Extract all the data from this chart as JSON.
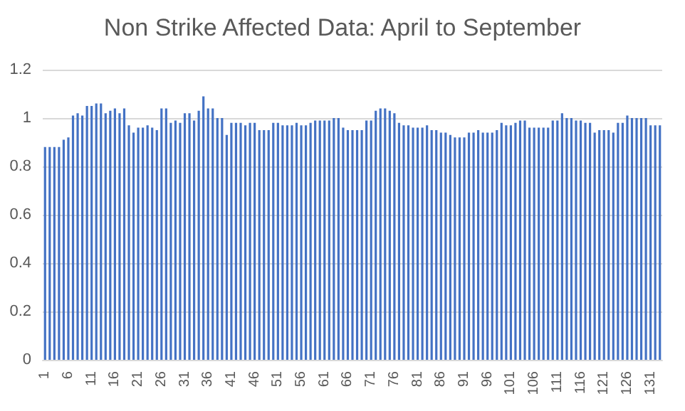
{
  "chart_data": {
    "type": "bar",
    "title": "Non Strike Affected Data: April to September",
    "categories": [
      "1",
      null,
      null,
      null,
      null,
      "6",
      null,
      null,
      null,
      null,
      "11",
      null,
      null,
      null,
      null,
      "16",
      null,
      null,
      null,
      null,
      "21",
      null,
      null,
      null,
      null,
      "26",
      null,
      null,
      null,
      null,
      "31",
      null,
      null,
      null,
      null,
      "36",
      null,
      null,
      null,
      null,
      "41",
      null,
      null,
      null,
      null,
      "46",
      null,
      null,
      null,
      null,
      "51",
      null,
      null,
      null,
      null,
      "56",
      null,
      null,
      null,
      null,
      "61",
      null,
      null,
      null,
      null,
      "66",
      null,
      null,
      null,
      null,
      "71",
      null,
      null,
      null,
      null,
      "76",
      null,
      null,
      null,
      null,
      "81",
      null,
      null,
      null,
      null,
      "86",
      null,
      null,
      null,
      null,
      "91",
      null,
      null,
      null,
      null,
      "96",
      null,
      null,
      null,
      null,
      "101",
      null,
      null,
      null,
      null,
      "106",
      null,
      null,
      null,
      null,
      "111",
      null,
      null,
      null,
      null,
      "116",
      null,
      null,
      null,
      null,
      "121",
      null,
      null,
      null,
      null,
      "126",
      null,
      null,
      null,
      null,
      "131",
      null,
      null
    ],
    "values": [
      0.88,
      0.88,
      0.88,
      0.88,
      0.91,
      0.92,
      1.01,
      1.02,
      1.01,
      1.05,
      1.05,
      1.06,
      1.06,
      1.02,
      1.03,
      1.04,
      1.02,
      1.04,
      0.97,
      0.94,
      0.96,
      0.96,
      0.97,
      0.96,
      0.95,
      1.04,
      1.04,
      0.98,
      0.99,
      0.98,
      1.02,
      1.02,
      0.99,
      1.03,
      1.09,
      1.04,
      1.04,
      1.0,
      1.0,
      0.93,
      0.98,
      0.98,
      0.98,
      0.97,
      0.98,
      0.98,
      0.95,
      0.95,
      0.95,
      0.98,
      0.98,
      0.97,
      0.97,
      0.97,
      0.98,
      0.97,
      0.97,
      0.98,
      0.99,
      0.99,
      0.99,
      0.99,
      1.0,
      1.0,
      0.96,
      0.95,
      0.95,
      0.95,
      0.95,
      0.99,
      0.99,
      1.03,
      1.04,
      1.04,
      1.03,
      1.02,
      0.98,
      0.97,
      0.97,
      0.96,
      0.96,
      0.96,
      0.97,
      0.95,
      0.95,
      0.94,
      0.94,
      0.93,
      0.92,
      0.92,
      0.92,
      0.94,
      0.94,
      0.95,
      0.94,
      0.94,
      0.94,
      0.95,
      0.98,
      0.97,
      0.97,
      0.98,
      0.99,
      0.99,
      0.96,
      0.96,
      0.96,
      0.96,
      0.96,
      0.99,
      0.99,
      1.02,
      1.0,
      1.0,
      0.99,
      0.99,
      0.98,
      0.98,
      0.94,
      0.95,
      0.95,
      0.95,
      0.94,
      0.98,
      0.98,
      1.01,
      1.0,
      1.0,
      1.0,
      1.0,
      0.97,
      0.97,
      0.97
    ],
    "color": "#4472c4",
    "ylim": [
      0,
      1.2
    ],
    "yticks": [
      0,
      0.2,
      0.4,
      0.6,
      0.8,
      1,
      1.2
    ],
    "grid": "y"
  }
}
